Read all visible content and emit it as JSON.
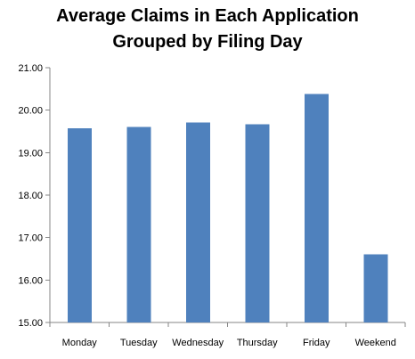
{
  "chart_data": {
    "type": "bar",
    "title_lines": [
      "Average Claims in Each Application",
      "Grouped by Filing Day"
    ],
    "categories": [
      "Monday",
      "Tuesday",
      "Wednesday",
      "Thursday",
      "Friday",
      "Weekend"
    ],
    "values": [
      19.57,
      19.61,
      19.71,
      19.67,
      20.38,
      16.61
    ],
    "ylim": [
      15.0,
      21.0
    ],
    "yticks": [
      "15.00",
      "16.00",
      "17.00",
      "18.00",
      "19.00",
      "20.00",
      "21.00"
    ],
    "xlabel": "",
    "ylabel": "",
    "grid": false,
    "legend": "none",
    "bar_color": "#4f81bd"
  }
}
